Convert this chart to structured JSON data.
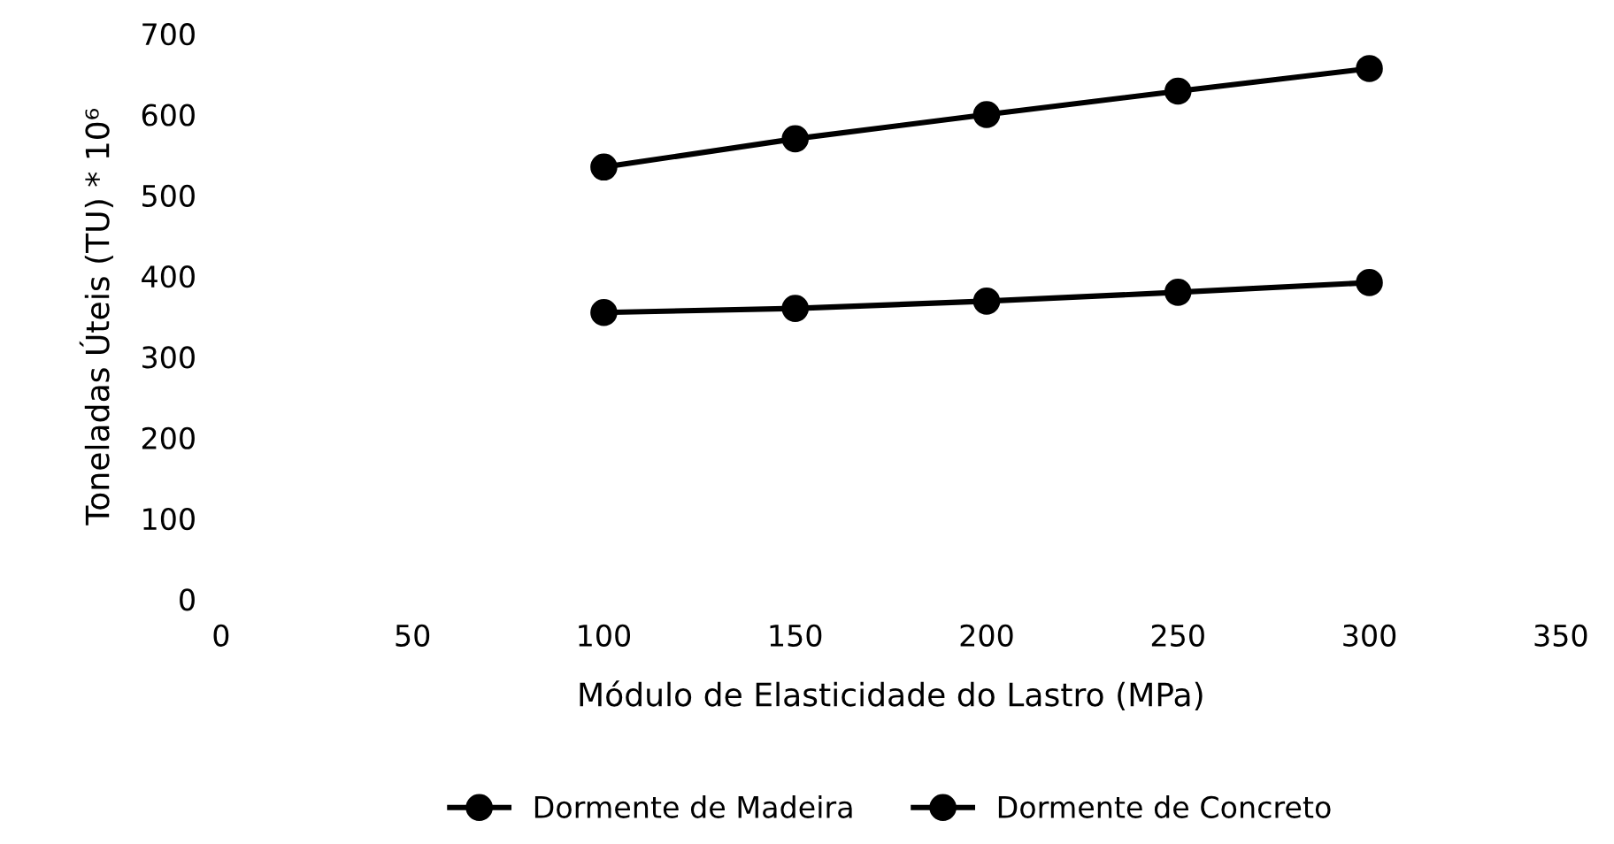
{
  "chart_data": {
    "type": "line",
    "xlabel": "Módulo de Elasticidade do Lastro (MPa)",
    "ylabel": "Toneladas Úteis (TU) * 10⁶",
    "x": [
      100,
      150,
      200,
      250,
      300
    ],
    "series": [
      {
        "name": "Dormente de Madeira",
        "color": "#000000",
        "values": [
          535,
          570,
          600,
          629,
          657
        ]
      },
      {
        "name": "Dormente de Concreto",
        "color": "#000000",
        "values": [
          355,
          360,
          369,
          380,
          392
        ]
      }
    ],
    "xlim": [
      0,
      350
    ],
    "xticks": [
      0,
      50,
      100,
      150,
      200,
      250,
      300,
      350
    ],
    "ylim": [
      0,
      700
    ],
    "yticks": [
      0,
      100,
      200,
      300,
      400,
      500,
      600,
      700
    ],
    "grid": false,
    "legend": "bottom",
    "marker": "circle",
    "line_style": "solid"
  }
}
